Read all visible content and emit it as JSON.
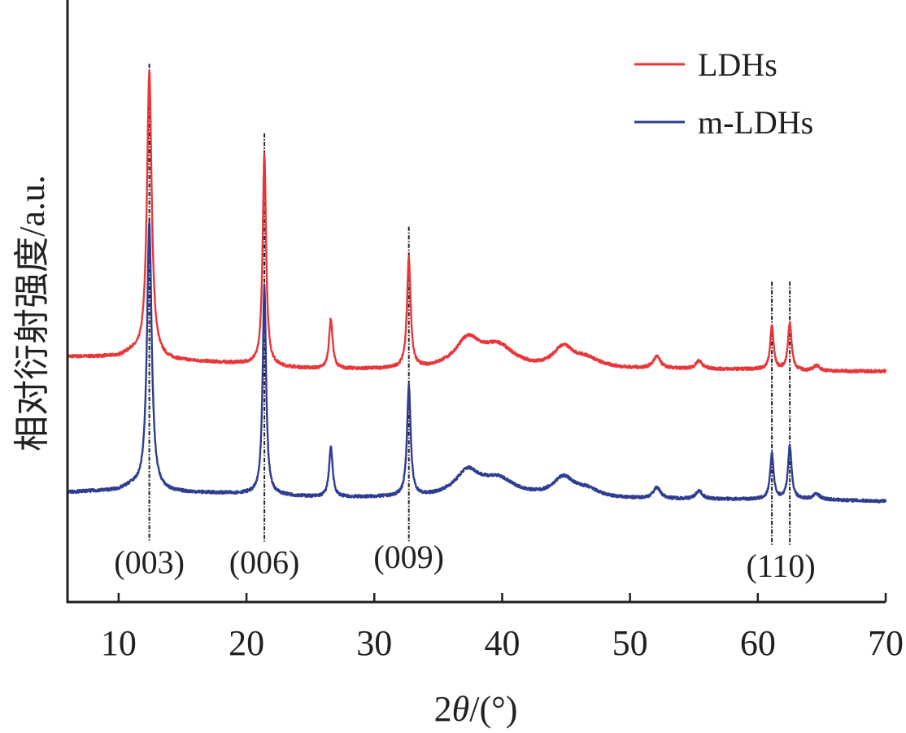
{
  "chart_data": {
    "type": "line",
    "xlabel_parts": [
      "2",
      "θ",
      "/(°)"
    ],
    "ylabel": "相对衍射强度/a.u.",
    "xlim": [
      6,
      70
    ],
    "xticks": [
      10,
      20,
      30,
      40,
      50,
      60,
      70
    ],
    "xtick_labels": [
      "10",
      "20",
      "30",
      "40",
      "50",
      "60",
      "70"
    ],
    "y_ticks_shown": false,
    "grid": false,
    "legend_position": "top-right",
    "series": [
      {
        "name": "LDHs",
        "color": "#e8373a",
        "baseline": [
          [
            6,
            0.2
          ],
          [
            10,
            0.2
          ],
          [
            11,
            0.4
          ],
          [
            12,
            0.2
          ],
          [
            14,
            0.0
          ],
          [
            20,
            -0.2
          ],
          [
            23,
            -0.4
          ],
          [
            26,
            -0.5
          ],
          [
            30,
            -0.5
          ],
          [
            34,
            -0.5
          ],
          [
            35.5,
            -0.4
          ],
          [
            40,
            -0.2
          ],
          [
            42.5,
            -0.5
          ],
          [
            45,
            -0.6
          ],
          [
            48,
            -0.5
          ],
          [
            52,
            -0.5
          ],
          [
            56,
            -0.5
          ],
          [
            60,
            -0.5
          ],
          [
            64,
            -0.6
          ],
          [
            70,
            -0.6
          ]
        ],
        "peaks": [
          {
            "x": 12.4,
            "h": 15.6,
            "w": 0.22
          },
          {
            "x": 21.4,
            "h": 11.6,
            "w": 0.16
          },
          {
            "x": 26.6,
            "h": 2.7,
            "w": 0.17
          },
          {
            "x": 32.7,
            "h": 6.0,
            "w": 0.17
          },
          {
            "x": 37.3,
            "h": 1.4,
            "w": 1.1
          },
          {
            "x": 39.6,
            "h": 0.9,
            "w": 1.5
          },
          {
            "x": 44.8,
            "h": 1.2,
            "w": 1.0
          },
          {
            "x": 46.6,
            "h": 0.5,
            "w": 1.2
          },
          {
            "x": 52.1,
            "h": 0.65,
            "w": 0.35
          },
          {
            "x": 55.4,
            "h": 0.45,
            "w": 0.3
          },
          {
            "x": 61.1,
            "h": 2.4,
            "w": 0.16
          },
          {
            "x": 62.5,
            "h": 2.6,
            "w": 0.17
          },
          {
            "x": 64.6,
            "h": 0.3,
            "w": 0.3
          }
        ]
      },
      {
        "name": "m-LDHs",
        "color": "#2f3d8f",
        "baseline": [
          [
            6,
            0.0
          ],
          [
            10,
            0.1
          ],
          [
            11,
            0.3
          ],
          [
            12,
            0.1
          ],
          [
            14,
            0.0
          ],
          [
            20,
            -0.1
          ],
          [
            23,
            -0.2
          ],
          [
            26,
            -0.3
          ],
          [
            30,
            -0.3
          ],
          [
            34,
            -0.3
          ],
          [
            36,
            -0.2
          ],
          [
            40,
            -0.1
          ],
          [
            43,
            -0.3
          ],
          [
            46,
            -0.4
          ],
          [
            50,
            -0.4
          ],
          [
            56,
            -0.4
          ],
          [
            60,
            -0.4
          ],
          [
            64,
            -0.4
          ],
          [
            70,
            -0.5
          ]
        ],
        "peaks": [
          {
            "x": 12.4,
            "h": 14.6,
            "w": 0.22
          },
          {
            "x": 21.4,
            "h": 11.4,
            "w": 0.16
          },
          {
            "x": 26.6,
            "h": 2.7,
            "w": 0.17
          },
          {
            "x": 32.7,
            "h": 6.0,
            "w": 0.17
          },
          {
            "x": 37.3,
            "h": 1.25,
            "w": 1.1
          },
          {
            "x": 39.6,
            "h": 0.75,
            "w": 1.5
          },
          {
            "x": 44.8,
            "h": 1.05,
            "w": 1.0
          },
          {
            "x": 46.6,
            "h": 0.45,
            "w": 1.2
          },
          {
            "x": 52.1,
            "h": 0.6,
            "w": 0.35
          },
          {
            "x": 55.4,
            "h": 0.45,
            "w": 0.3
          },
          {
            "x": 61.1,
            "h": 2.5,
            "w": 0.16
          },
          {
            "x": 62.5,
            "h": 2.9,
            "w": 0.17
          },
          {
            "x": 64.6,
            "h": 0.3,
            "w": 0.3
          }
        ]
      }
    ],
    "reference_lines": [
      {
        "x": 12.4,
        "top": 16.2,
        "bottom": -2.7
      },
      {
        "x": 21.4,
        "top": 12.4,
        "bottom": -2.7
      },
      {
        "x": 32.7,
        "top": 7.3,
        "bottom": -2.7
      },
      {
        "x": 61.1,
        "top": 4.3,
        "bottom": -2.9
      },
      {
        "x": 62.5,
        "top": 4.3,
        "bottom": -2.9
      }
    ],
    "annotations": [
      {
        "text": "(003)",
        "x": 12.4,
        "y": -3.8
      },
      {
        "text": "(006)",
        "x": 21.4,
        "y": -3.8
      },
      {
        "text": "(009)",
        "x": 32.7,
        "y": -3.5
      },
      {
        "text": "(110)",
        "x": 61.8,
        "y": -4.0
      }
    ]
  }
}
